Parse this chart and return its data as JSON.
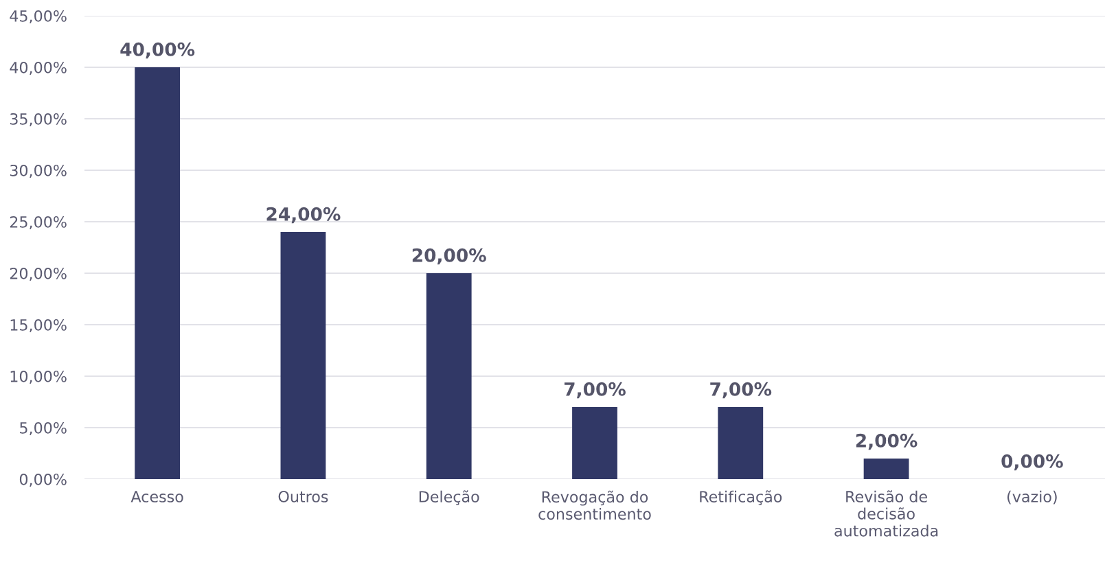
{
  "chart_data": {
    "type": "bar",
    "categories": [
      "Acesso",
      "Outros",
      "Deleção",
      "Revogação do\nconsentimento",
      "Retificação",
      "Revisão de\ndecisão\nautomatizada",
      "(vazio)"
    ],
    "values": [
      40,
      24,
      20,
      7,
      7,
      2,
      0
    ],
    "value_labels": [
      "40,00%",
      "24,00%",
      "20,00%",
      "7,00%",
      "7,00%",
      "2,00%",
      "0,00%"
    ],
    "color": "#313866",
    "ylim": [
      0,
      45
    ],
    "yticks": [
      {
        "value": 0,
        "label": "0,00%"
      },
      {
        "value": 5,
        "label": "5,00%"
      },
      {
        "value": 10,
        "label": "10,00%"
      },
      {
        "value": 15,
        "label": "15,00%"
      },
      {
        "value": 20,
        "label": "20,00%"
      },
      {
        "value": 25,
        "label": "25,00%"
      },
      {
        "value": 30,
        "label": "30,00%"
      },
      {
        "value": 35,
        "label": "35,00%"
      },
      {
        "value": 40,
        "label": "40,00%"
      },
      {
        "value": 45,
        "label": "45,00%"
      }
    ],
    "grid": "y"
  }
}
